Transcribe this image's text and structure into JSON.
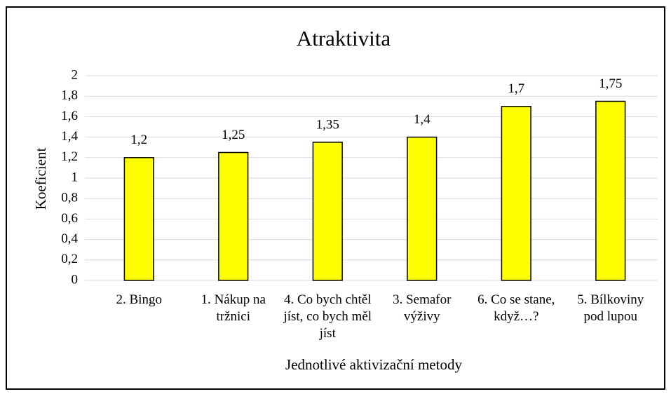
{
  "chart_data": {
    "type": "bar",
    "title": "Atraktivita",
    "x_label": "Jednotlivé aktivizační metody",
    "y_label": "Koeficient",
    "categories": [
      "2. Bingo",
      "1. Nákup na tržnici",
      "4. Co bych chtěl jíst, co bych měl jíst",
      "3. Semafor výživy",
      "6. Co se stane, když…?",
      "5. Bílkoviny pod lupou"
    ],
    "values": [
      1.2,
      1.25,
      1.35,
      1.4,
      1.7,
      1.75
    ],
    "value_labels": [
      "1,2",
      "1,25",
      "1,35",
      "1,4",
      "1,7",
      "1,75"
    ],
    "color": "#ffff00",
    "ylim": [
      0,
      2
    ],
    "yticks": [
      0,
      {
        "value": 0.2,
        "label": "0,2"
      },
      {
        "value": 0.4,
        "label": "0,4"
      },
      {
        "value": 0.6,
        "label": "0,6"
      },
      {
        "value": 0.8,
        "label": "0,8"
      },
      1,
      {
        "value": 1.2,
        "label": "1,2"
      },
      {
        "value": 1.4,
        "label": "1,4"
      },
      {
        "value": 1.6,
        "label": "1,6"
      },
      {
        "value": 1.8,
        "label": "1,8"
      },
      2
    ],
    "grid": true
  }
}
